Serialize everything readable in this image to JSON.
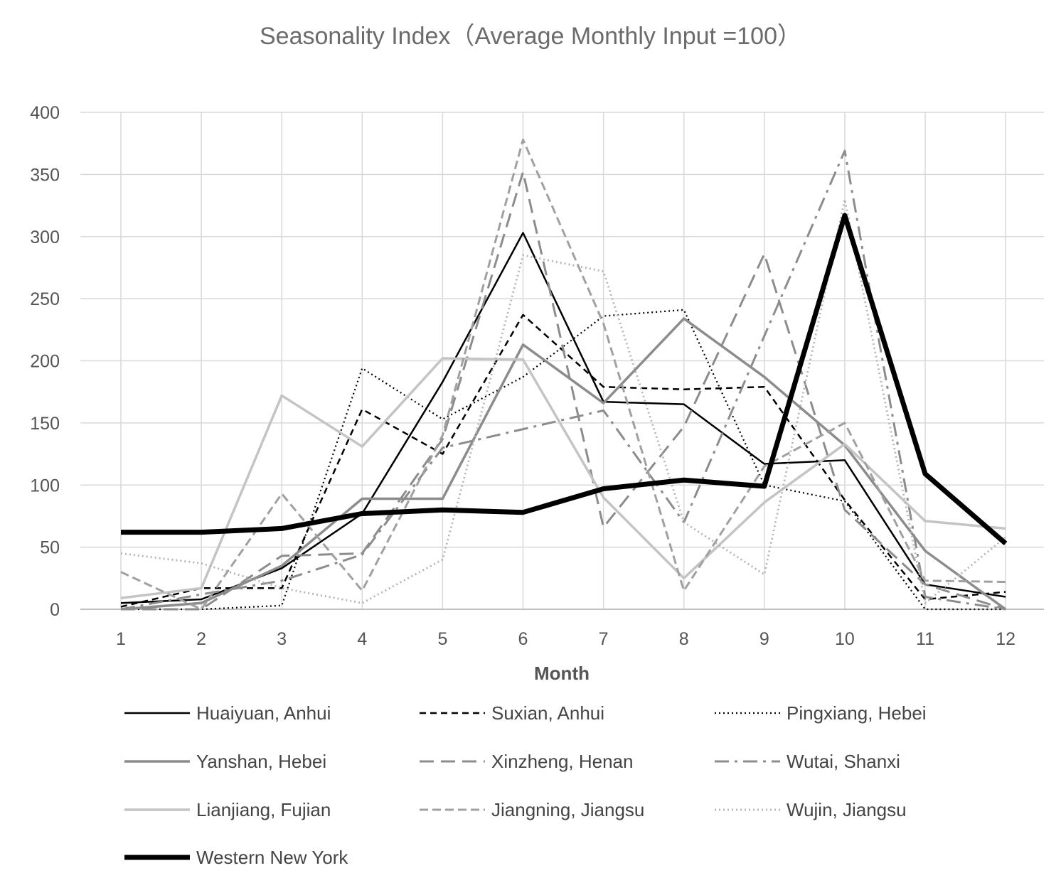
{
  "chart_data": {
    "type": "line",
    "title": "Seasonality Index（Average Monthly Input =100）",
    "xlabel": "Month",
    "ylabel": "",
    "x": [
      1,
      2,
      3,
      4,
      5,
      6,
      7,
      8,
      9,
      10,
      11,
      12
    ],
    "ylim": [
      0,
      400
    ],
    "yticks": [
      0,
      50,
      100,
      150,
      200,
      250,
      300,
      350,
      400
    ],
    "grid": true,
    "legend_position": "bottom",
    "series": [
      {
        "name": "Huaiyuan, Anhui",
        "color": "#000000",
        "width": 2.5,
        "dash": "",
        "values": [
          5,
          8,
          33,
          77,
          183,
          303,
          167,
          165,
          117,
          120,
          20,
          10
        ]
      },
      {
        "name": "Suxian, Anhui",
        "color": "#000000",
        "width": 2.5,
        "dash": "9,6",
        "values": [
          2,
          17,
          17,
          161,
          125,
          237,
          179,
          177,
          179,
          88,
          8,
          14
        ]
      },
      {
        "name": "Pingxiang, Hebei",
        "color": "#000000",
        "width": 2.2,
        "dash": "2,4",
        "values": [
          0,
          0,
          3,
          194,
          153,
          187,
          236,
          241,
          100,
          87,
          0,
          0
        ]
      },
      {
        "name": "Yanshan, Hebei",
        "color": "#8c8c8c",
        "width": 3.5,
        "dash": "",
        "values": [
          0,
          5,
          35,
          89,
          89,
          213,
          166,
          234,
          187,
          132,
          47,
          0
        ]
      },
      {
        "name": "Xinzheng, Henan",
        "color": "#8c8c8c",
        "width": 3,
        "dash": "20,10",
        "values": [
          0,
          0,
          43,
          45,
          137,
          352,
          66,
          147,
          286,
          80,
          20,
          0
        ]
      },
      {
        "name": "Wutai, Shanxi",
        "color": "#8c8c8c",
        "width": 3,
        "dash": "20,8,4,8",
        "values": [
          0,
          12,
          23,
          44,
          130,
          145,
          160,
          70,
          220,
          369,
          10,
          0
        ]
      },
      {
        "name": "Lianjiang, Fujian",
        "color": "#c4c4c4",
        "width": 3.5,
        "dash": "",
        "values": [
          9,
          17,
          172,
          131,
          202,
          201,
          90,
          25,
          86,
          133,
          71,
          65
        ]
      },
      {
        "name": "Jiangning, Jiangsu",
        "color": "#a0a0a0",
        "width": 3,
        "dash": "12,6",
        "values": [
          30,
          0,
          93,
          15,
          140,
          378,
          230,
          15,
          115,
          150,
          23,
          22
        ]
      },
      {
        "name": "Wujin, Jiangsu",
        "color": "#b4b4b4",
        "width": 2.8,
        "dash": "2,4",
        "values": [
          45,
          37,
          17,
          5,
          40,
          285,
          272,
          70,
          28,
          330,
          5,
          58
        ]
      },
      {
        "name": "Western New York",
        "color": "#000000",
        "width": 7,
        "dash": "",
        "values": [
          62,
          62,
          65,
          77,
          80,
          78,
          97,
          104,
          99,
          317,
          109,
          53
        ]
      }
    ]
  }
}
